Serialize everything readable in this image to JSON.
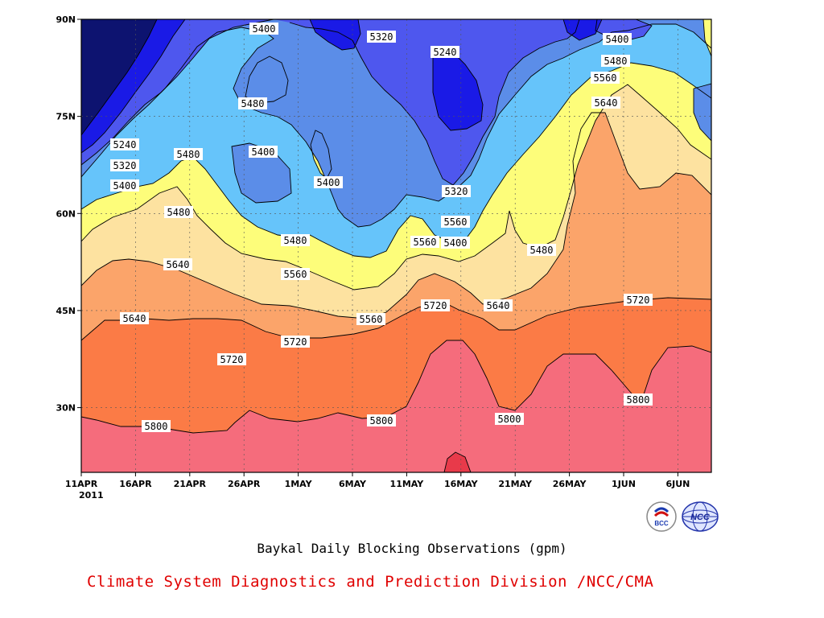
{
  "chart_data": {
    "type": "heatmap",
    "subtype": "contour-filled",
    "title": "Baykal Daily Blocking Observations (gpm)",
    "source": "Climate System Diagnostics and Prediction Division /NCC/CMA",
    "x_start_year": "2011",
    "x_ticks": [
      "11APR",
      "16APR",
      "21APR",
      "26APR",
      "1MAY",
      "6MAY",
      "11MAY",
      "16MAY",
      "21MAY",
      "26MAY",
      "1JUN",
      "6JUN"
    ],
    "y_ticks": [
      "30N",
      "45N",
      "60N",
      "75N",
      "90N"
    ],
    "ylim": [
      20,
      90
    ],
    "contour_levels": [
      5240,
      5320,
      5400,
      5480,
      5560,
      5640,
      5720,
      5800
    ],
    "level_colors": {
      "below_5240": "#0d1370",
      "5240_5320": "#1a1ae6",
      "5320_5400": "#4e57ee",
      "5400_5480": "#5b8de8",
      "5480_5560": "#66c4fa",
      "5560_5640": "#fdfd7a",
      "5640_5720": "#fde2a0",
      "5720_5800": "#fba46a",
      "5800_5880": "#fb7b46",
      "above_5880": "#f56c7c",
      "peak": "#e83a4a"
    },
    "contour_labels": [
      {
        "value": "5400"
      },
      {
        "value": "5320"
      },
      {
        "value": "5240"
      },
      {
        "value": "5400"
      },
      {
        "value": "5480"
      },
      {
        "value": "5560"
      },
      {
        "value": "5640"
      },
      {
        "value": "5480"
      },
      {
        "value": "5400"
      },
      {
        "value": "5240"
      },
      {
        "value": "5320"
      },
      {
        "value": "5480"
      },
      {
        "value": "5400"
      },
      {
        "value": "5400"
      },
      {
        "value": "5480"
      },
      {
        "value": "5320"
      },
      {
        "value": "5560"
      },
      {
        "value": "5400"
      },
      {
        "value": "5480"
      },
      {
        "value": "5560"
      },
      {
        "value": "5640"
      },
      {
        "value": "5480"
      },
      {
        "value": "5560"
      },
      {
        "value": "5560"
      },
      {
        "value": "5720"
      },
      {
        "value": "5640"
      },
      {
        "value": "5640"
      },
      {
        "value": "5720"
      },
      {
        "value": "5720"
      },
      {
        "value": "5720"
      },
      {
        "value": "5800"
      },
      {
        "value": "5800"
      },
      {
        "value": "5800"
      },
      {
        "value": "5800"
      },
      {
        "value": "5800"
      }
    ]
  },
  "logos": {
    "left": "BCC",
    "right": "NCC"
  },
  "colors": {
    "division_text": "#e00000"
  }
}
